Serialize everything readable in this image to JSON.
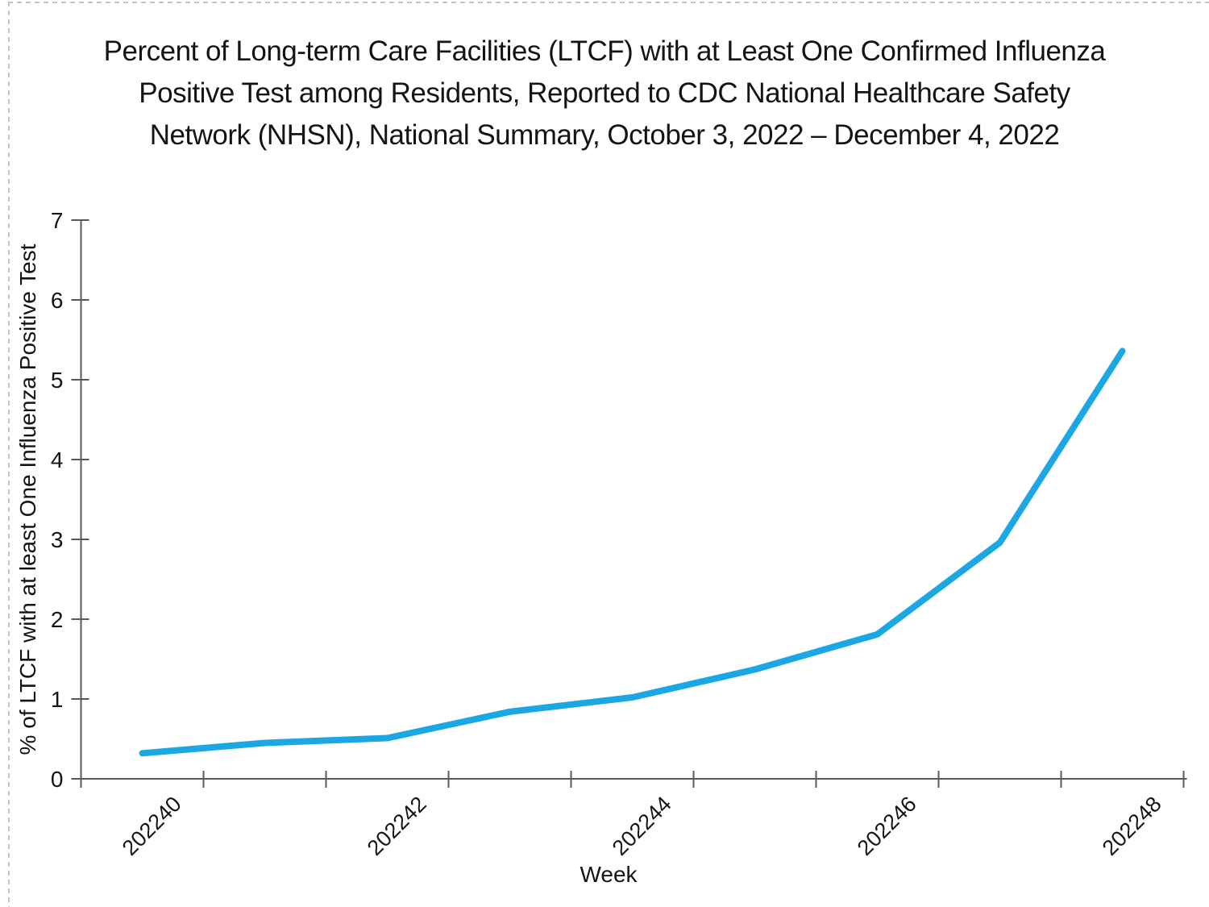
{
  "page": {
    "background": "#ffffff",
    "edge_color": "#c9bfcf"
  },
  "title_lines": [
    "Percent of Long-term Care Facilities (LTCF) with at Least One Confirmed Influenza",
    "Positive Test among Residents, Reported to CDC National Healthcare Safety",
    "Network (NHSN), National Summary, October 3, 2022 – December 4, 2022"
  ],
  "chart_data": {
    "type": "line",
    "title": "",
    "categories": [
      "202240",
      "202241",
      "202242",
      "202243",
      "202244",
      "202245",
      "202246",
      "202247",
      "202248"
    ],
    "values": [
      0.32,
      0.45,
      0.51,
      0.84,
      1.02,
      1.37,
      1.81,
      2.96,
      5.36
    ],
    "xlabel": "Week",
    "ylabel": "% of LTCF with at least One Influenza Positive Test",
    "ylim": [
      0,
      7
    ],
    "yticks": [
      "0",
      "1",
      "2",
      "3",
      "4",
      "5",
      "6",
      "7"
    ],
    "xtick_labels": [
      "202240",
      "202242",
      "202244",
      "202246",
      "202248"
    ],
    "xtick_label_every": 2,
    "grid": false,
    "legend": "none",
    "line_color": "#1BA6E4",
    "axis_color": "#595959",
    "text_color": "#141414"
  }
}
